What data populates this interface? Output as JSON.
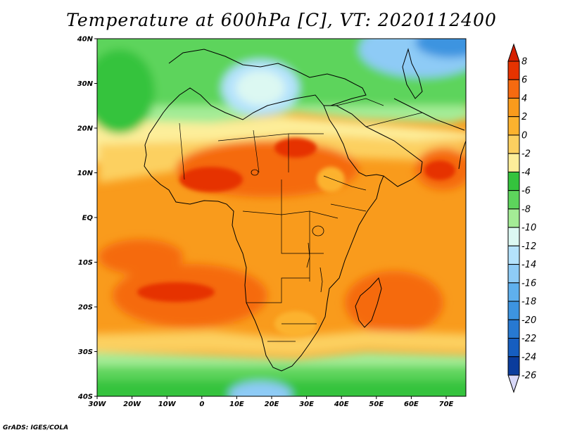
{
  "title": "Temperature at 600hPa [C], VT: 2020112400",
  "credit": "GrADS: IGES/COLA",
  "lat_ticks": [
    "40N",
    "30N",
    "20N",
    "10N",
    "EQ",
    "10S",
    "20S",
    "30S",
    "40S"
  ],
  "lon_ticks": [
    "30W",
    "20W",
    "10W",
    "0",
    "10E",
    "20E",
    "30E",
    "40E",
    "50E",
    "60E",
    "70E"
  ],
  "colorbar": {
    "top_arrow_color": "#d62000",
    "bottom_arrow_color": "#d8d8f8",
    "bins": [
      {
        "label": "8",
        "color": "#e63300"
      },
      {
        "label": "6",
        "color": "#f56a10"
      },
      {
        "label": "4",
        "color": "#f99b1c"
      },
      {
        "label": "2",
        "color": "#fcb22e"
      },
      {
        "label": "0",
        "color": "#fcd060"
      },
      {
        "label": "-2",
        "color": "#fdee9a"
      },
      {
        "label": "-4",
        "color": "#34c33d"
      },
      {
        "label": "-6",
        "color": "#5dd45c"
      },
      {
        "label": "-8",
        "color": "#a4ec96"
      },
      {
        "label": "-10",
        "color": "#dcf8f2"
      },
      {
        "label": "-12",
        "color": "#b4e2fc"
      },
      {
        "label": "-14",
        "color": "#8ecbf6"
      },
      {
        "label": "-16",
        "color": "#5fb0ee"
      },
      {
        "label": "-18",
        "color": "#3d94e0"
      },
      {
        "label": "-20",
        "color": "#2779d1"
      },
      {
        "label": "-22",
        "color": "#165ec0"
      },
      {
        "label": "-24",
        "color": "#0b3c9c"
      },
      {
        "label": "-26",
        "color": "#0a1a6e"
      }
    ]
  }
}
